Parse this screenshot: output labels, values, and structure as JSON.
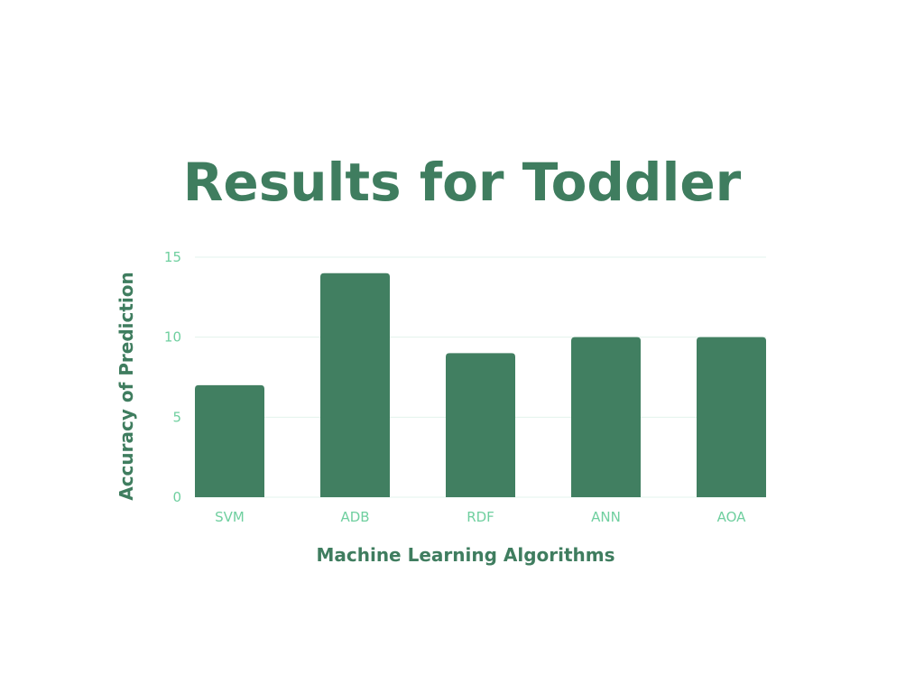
{
  "chart_data": {
    "type": "bar",
    "title": "Results for Toddler",
    "xlabel": "Machine Learning Algorithms",
    "ylabel": "Accuracy of Prediction",
    "categories": [
      "SVM",
      "ADB",
      "RDF",
      "ANN",
      "AOA"
    ],
    "values": [
      7,
      14,
      9,
      10,
      10
    ],
    "ylim": [
      0,
      15
    ],
    "yticks": [
      0,
      5,
      10,
      15
    ],
    "grid": true,
    "legend": "none",
    "bar_color": "#417f61",
    "tick_color": "#6fcf9f",
    "label_color": "#3f7d5f"
  }
}
